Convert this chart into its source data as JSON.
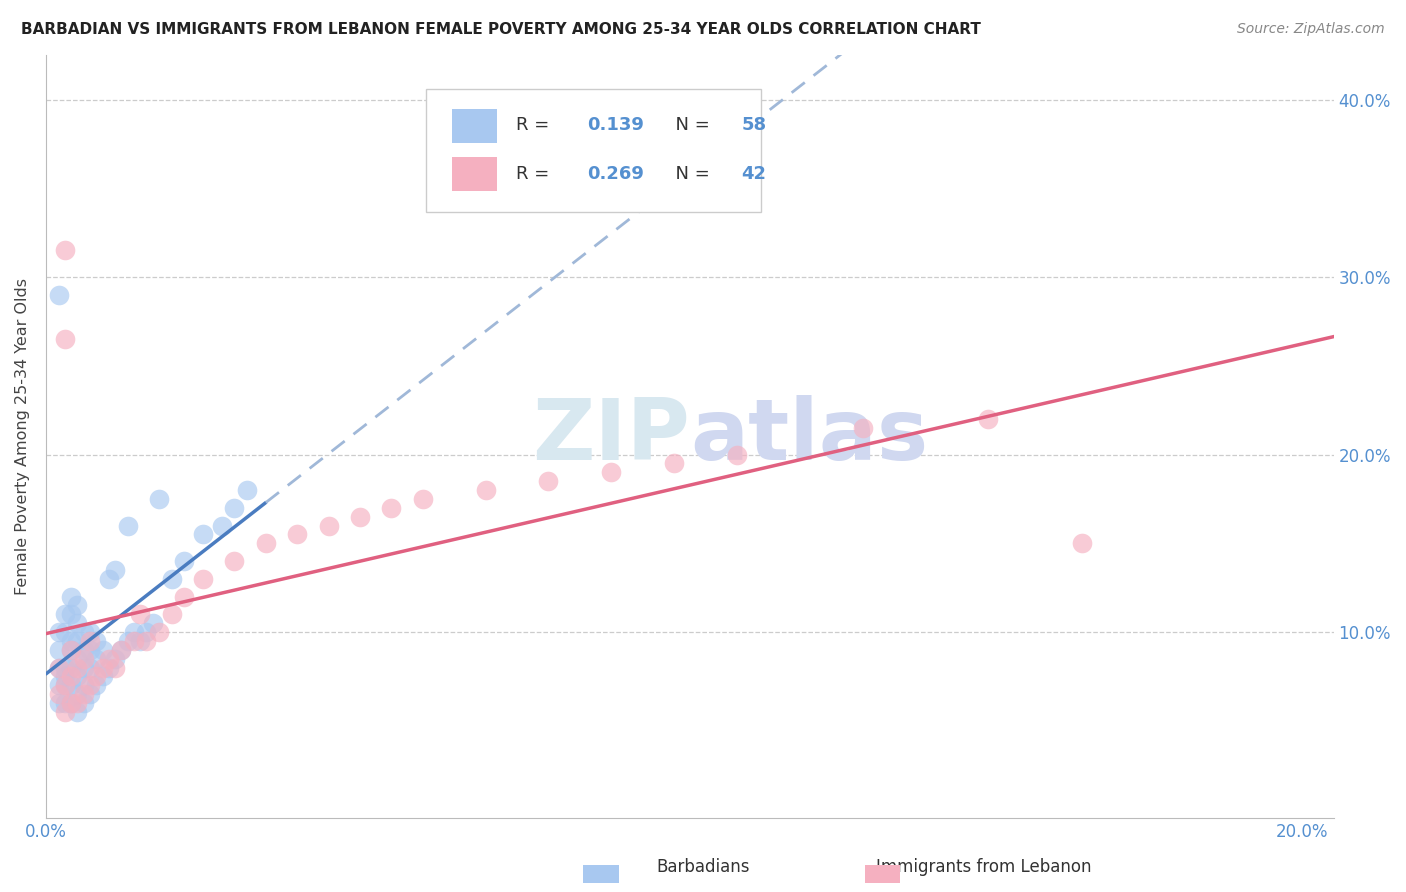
{
  "title": "BARBADIAN VS IMMIGRANTS FROM LEBANON FEMALE POVERTY AMONG 25-34 YEAR OLDS CORRELATION CHART",
  "source": "Source: ZipAtlas.com",
  "xlabel_barbadians": "Barbadians",
  "xlabel_lebanon": "Immigrants from Lebanon",
  "ylabel": "Female Poverty Among 25-34 Year Olds",
  "xlim": [
    0.0,
    0.205
  ],
  "ylim": [
    -0.005,
    0.425
  ],
  "r_barbadians": 0.139,
  "n_barbadians": 58,
  "r_lebanon": 0.269,
  "n_lebanon": 42,
  "color_barbadians": "#A8C8F0",
  "color_lebanon": "#F5B0C0",
  "line_color_barbadians": "#4A7CC0",
  "line_color_lebanon": "#E06080",
  "dash_color_barbadians": "#A0B8D8",
  "background_color": "#ffffff",
  "watermark_color": "#D8E8F0",
  "watermark_color2": "#D0D8F0",
  "grid_color": "#CCCCCC",
  "title_color": "#222222",
  "source_color": "#888888",
  "tick_color": "#5590D0",
  "axis_color": "#BBBBBB",
  "barbadians_x": [
    0.002,
    0.002,
    0.002,
    0.002,
    0.002,
    0.003,
    0.003,
    0.003,
    0.003,
    0.003,
    0.003,
    0.004,
    0.004,
    0.004,
    0.004,
    0.004,
    0.004,
    0.004,
    0.005,
    0.005,
    0.005,
    0.005,
    0.005,
    0.005,
    0.005,
    0.006,
    0.006,
    0.006,
    0.006,
    0.006,
    0.007,
    0.007,
    0.007,
    0.007,
    0.008,
    0.008,
    0.008,
    0.009,
    0.009,
    0.01,
    0.01,
    0.011,
    0.011,
    0.012,
    0.013,
    0.013,
    0.014,
    0.015,
    0.016,
    0.017,
    0.018,
    0.02,
    0.022,
    0.025,
    0.028,
    0.03,
    0.032,
    0.002
  ],
  "barbadians_y": [
    0.06,
    0.07,
    0.08,
    0.09,
    0.1,
    0.06,
    0.07,
    0.075,
    0.08,
    0.1,
    0.11,
    0.06,
    0.07,
    0.08,
    0.09,
    0.095,
    0.11,
    0.12,
    0.055,
    0.065,
    0.075,
    0.085,
    0.095,
    0.105,
    0.115,
    0.06,
    0.07,
    0.08,
    0.09,
    0.1,
    0.065,
    0.08,
    0.09,
    0.1,
    0.07,
    0.085,
    0.095,
    0.075,
    0.09,
    0.08,
    0.13,
    0.085,
    0.135,
    0.09,
    0.095,
    0.16,
    0.1,
    0.095,
    0.1,
    0.105,
    0.175,
    0.13,
    0.14,
    0.155,
    0.16,
    0.17,
    0.18,
    0.29
  ],
  "lebanon_x": [
    0.002,
    0.002,
    0.003,
    0.003,
    0.004,
    0.004,
    0.004,
    0.005,
    0.005,
    0.006,
    0.006,
    0.007,
    0.007,
    0.008,
    0.009,
    0.01,
    0.011,
    0.012,
    0.014,
    0.015,
    0.016,
    0.018,
    0.02,
    0.022,
    0.025,
    0.03,
    0.035,
    0.04,
    0.045,
    0.05,
    0.055,
    0.06,
    0.07,
    0.08,
    0.09,
    0.1,
    0.11,
    0.13,
    0.15,
    0.165,
    0.003,
    0.003
  ],
  "lebanon_y": [
    0.065,
    0.08,
    0.055,
    0.07,
    0.06,
    0.075,
    0.09,
    0.06,
    0.08,
    0.065,
    0.085,
    0.07,
    0.095,
    0.075,
    0.08,
    0.085,
    0.08,
    0.09,
    0.095,
    0.11,
    0.095,
    0.1,
    0.11,
    0.12,
    0.13,
    0.14,
    0.15,
    0.155,
    0.16,
    0.165,
    0.17,
    0.175,
    0.18,
    0.185,
    0.19,
    0.195,
    0.2,
    0.215,
    0.22,
    0.15,
    0.265,
    0.315
  ]
}
